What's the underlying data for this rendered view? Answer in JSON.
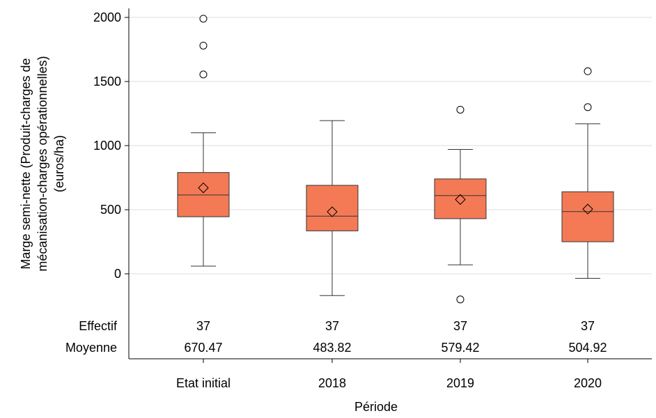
{
  "chart_data": {
    "type": "boxplot",
    "xlabel": "Période",
    "ylabel_lines": [
      "Marge semi-nette (Produit-charges de",
      "mécanisation-charges opérationnelles)",
      "(euros/ha)"
    ],
    "ylim": [
      -400,
      2050
    ],
    "yticks": [
      0,
      500,
      1000,
      1500,
      2000
    ],
    "grid": true,
    "categories": [
      "Etat initial",
      "2018",
      "2019",
      "2020"
    ],
    "colors": {
      "box_fill": "#F47A55",
      "box_stroke": "#333333",
      "grid": "#dddddd"
    },
    "boxes": [
      {
        "whisker_low": 60,
        "q1": 445,
        "median": 615,
        "q3": 790,
        "whisker_high": 1100,
        "mean": 670.47,
        "outliers": [
          1555,
          1780,
          1990
        ]
      },
      {
        "whisker_low": -170,
        "q1": 335,
        "median": 450,
        "q3": 690,
        "whisker_high": 1195,
        "mean": 483.82,
        "outliers": []
      },
      {
        "whisker_low": 70,
        "q1": 430,
        "median": 610,
        "q3": 740,
        "whisker_high": 970,
        "mean": 579.42,
        "outliers": [
          -200,
          1280
        ]
      },
      {
        "whisker_low": -35,
        "q1": 250,
        "median": 485,
        "q3": 640,
        "whisker_high": 1170,
        "mean": 504.92,
        "outliers": [
          1300,
          1580
        ]
      }
    ],
    "table": {
      "rows": [
        {
          "label": "Effectif",
          "values": [
            "37",
            "37",
            "37",
            "37"
          ]
        },
        {
          "label": "Moyenne",
          "values": [
            "670.47",
            "483.82",
            "579.42",
            "504.92"
          ]
        }
      ]
    }
  }
}
